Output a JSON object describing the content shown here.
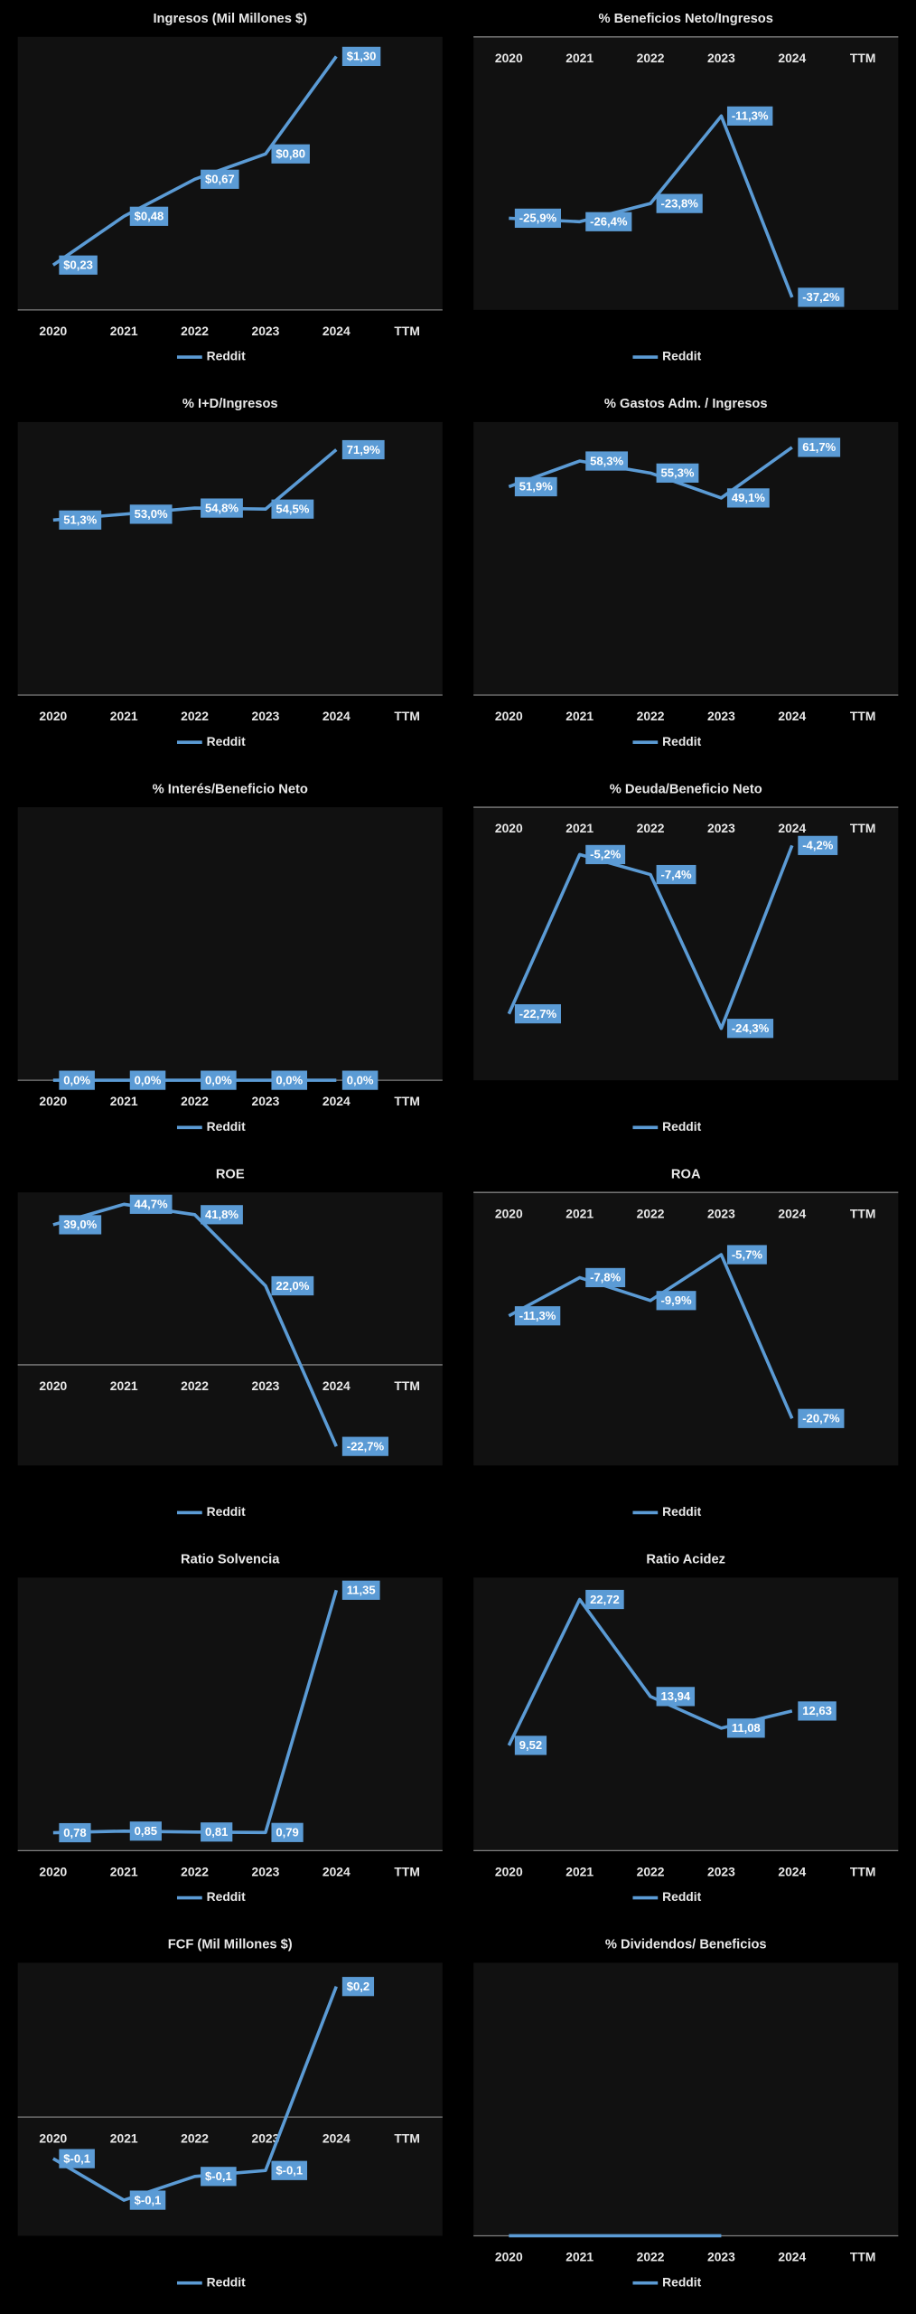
{
  "chart_data": [
    {
      "type": "line",
      "title": "Ingresos (Mil Millones $)",
      "categories": [
        "2020",
        "2021",
        "2022",
        "2023",
        "2024",
        "TTM"
      ],
      "series": [
        {
          "name": "Reddit",
          "color": "#5b9bd5",
          "values": [
            0.23,
            0.48,
            0.67,
            0.8,
            1.3,
            null
          ],
          "value_labels": [
            "$0,23",
            "$0,48",
            "$0,67",
            "$0,80",
            "$1,30",
            null
          ]
        }
      ],
      "ylim": [
        0,
        1.4
      ],
      "legend": "bottom"
    },
    {
      "type": "line",
      "title": "% Beneficios Neto/Ingresos",
      "categories": [
        "2020",
        "2021",
        "2022",
        "2023",
        "2024",
        "TTM"
      ],
      "series": [
        {
          "name": "Reddit",
          "color": "#5b9bd5",
          "values": [
            -25.9,
            -26.4,
            -23.8,
            -11.3,
            -37.2,
            null
          ],
          "value_labels": [
            "-25,9%",
            "-26,4%",
            "-23,8%",
            "-11,3%",
            "-37,2%",
            null
          ]
        }
      ],
      "ylim": [
        -39,
        0
      ],
      "legend": "bottom"
    },
    {
      "type": "line",
      "title": "% I+D/Ingresos",
      "categories": [
        "2020",
        "2021",
        "2022",
        "2023",
        "2024",
        "TTM"
      ],
      "series": [
        {
          "name": "Reddit",
          "color": "#5b9bd5",
          "values": [
            51.3,
            53.0,
            54.8,
            54.5,
            71.9,
            null
          ],
          "value_labels": [
            "51,3%",
            "53,0%",
            "54,8%",
            "54,5%",
            "71,9%",
            null
          ]
        }
      ],
      "ylim": [
        0,
        80
      ],
      "legend": "bottom"
    },
    {
      "type": "line",
      "title": "% Gastos Adm. / Ingresos",
      "categories": [
        "2020",
        "2021",
        "2022",
        "2023",
        "2024",
        "TTM"
      ],
      "series": [
        {
          "name": "Reddit",
          "color": "#5b9bd5",
          "values": [
            51.9,
            58.3,
            55.3,
            49.1,
            61.7,
            null
          ],
          "value_labels": [
            "51,9%",
            "58,3%",
            "55,3%",
            "49,1%",
            "61,7%",
            null
          ]
        }
      ],
      "ylim": [
        0,
        68
      ],
      "legend": "bottom"
    },
    {
      "type": "line",
      "title": "% Interés/Beneficio Neto",
      "categories": [
        "2020",
        "2021",
        "2022",
        "2023",
        "2024",
        "TTM"
      ],
      "series": [
        {
          "name": "Reddit",
          "color": "#5b9bd5",
          "values": [
            0,
            0,
            0,
            0,
            0,
            null
          ],
          "value_labels": [
            "0,0%",
            "0,0%",
            "0,0%",
            "0,0%",
            "0,0%",
            null
          ]
        }
      ],
      "ylim": [
        0,
        1
      ],
      "legend": "bottom"
    },
    {
      "type": "line",
      "title": "% Deuda/Beneficio Neto",
      "categories": [
        "2020",
        "2021",
        "2022",
        "2023",
        "2024",
        "TTM"
      ],
      "series": [
        {
          "name": "Reddit",
          "color": "#5b9bd5",
          "values": [
            -22.7,
            -5.2,
            -7.4,
            -24.3,
            -4.2,
            null
          ],
          "value_labels": [
            "-22,7%",
            "-5,2%",
            "-7,4%",
            "-24,3%",
            "-4,2%",
            null
          ]
        }
      ],
      "ylim": [
        -30,
        0
      ],
      "legend": "bottom"
    },
    {
      "type": "line",
      "title": "ROE",
      "categories": [
        "2020",
        "2021",
        "2022",
        "2023",
        "2024",
        "TTM"
      ],
      "series": [
        {
          "name": "Reddit",
          "color": "#5b9bd5",
          "values": [
            39.0,
            44.7,
            41.8,
            22.0,
            -22.7,
            null
          ],
          "value_labels": [
            "39,0%",
            "44,7%",
            "41,8%",
            "22,0%",
            "-22,7%",
            null
          ]
        }
      ],
      "ylim": [
        -28,
        48
      ],
      "legend": "bottom"
    },
    {
      "type": "line",
      "title": "ROA",
      "categories": [
        "2020",
        "2021",
        "2022",
        "2023",
        "2024",
        "TTM"
      ],
      "series": [
        {
          "name": "Reddit",
          "color": "#5b9bd5",
          "values": [
            -11.3,
            -7.8,
            -9.9,
            -5.7,
            -20.7,
            null
          ],
          "value_labels": [
            "-11,3%",
            "-7,8%",
            "-9,9%",
            "-5,7%",
            "-20,7%",
            null
          ]
        }
      ],
      "ylim": [
        -25,
        0
      ],
      "legend": "bottom"
    },
    {
      "type": "line",
      "title": "Ratio Solvencia",
      "categories": [
        "2020",
        "2021",
        "2022",
        "2023",
        "2024",
        "TTM"
      ],
      "series": [
        {
          "name": "Reddit",
          "color": "#5b9bd5",
          "values": [
            0.78,
            0.85,
            0.81,
            0.79,
            11.35,
            null
          ],
          "value_labels": [
            "0,78",
            "0,85",
            "0,81",
            "0,79",
            "11,35",
            null
          ]
        }
      ],
      "ylim": [
        0,
        11.9
      ],
      "legend": "bottom"
    },
    {
      "type": "line",
      "title": "Ratio Acidez",
      "categories": [
        "2020",
        "2021",
        "2022",
        "2023",
        "2024",
        "TTM"
      ],
      "series": [
        {
          "name": "Reddit",
          "color": "#5b9bd5",
          "values": [
            9.52,
            22.72,
            13.94,
            11.08,
            12.63,
            null
          ],
          "value_labels": [
            "9,52",
            "22,72",
            "13,94",
            "11,08",
            "12,63",
            null
          ]
        }
      ],
      "ylim": [
        0,
        24.7
      ],
      "legend": "bottom"
    },
    {
      "type": "line",
      "title": "FCF (Mil Millones $)",
      "categories": [
        "2020",
        "2021",
        "2022",
        "2023",
        "2024",
        "TTM"
      ],
      "series": [
        {
          "name": "Reddit",
          "color": "#5b9bd5",
          "values": [
            -0.07,
            -0.14,
            -0.1,
            -0.09,
            0.22,
            null
          ],
          "value_labels": [
            "$-0,1",
            "$-0,1",
            "$-0,1",
            "$-0,1",
            "$0,2",
            null
          ]
        }
      ],
      "ylim": [
        -0.2,
        0.26
      ],
      "legend": "bottom"
    },
    {
      "type": "line",
      "title": "% Dividendos/ Beneficios",
      "categories": [
        "2020",
        "2021",
        "2022",
        "2023",
        "2024",
        "TTM"
      ],
      "series": [
        {
          "name": "Reddit",
          "color": "#5b9bd5",
          "values": [
            0,
            0,
            0,
            0,
            null,
            null
          ]
        }
      ],
      "ylim": [
        0,
        1
      ],
      "legend": "bottom"
    }
  ]
}
